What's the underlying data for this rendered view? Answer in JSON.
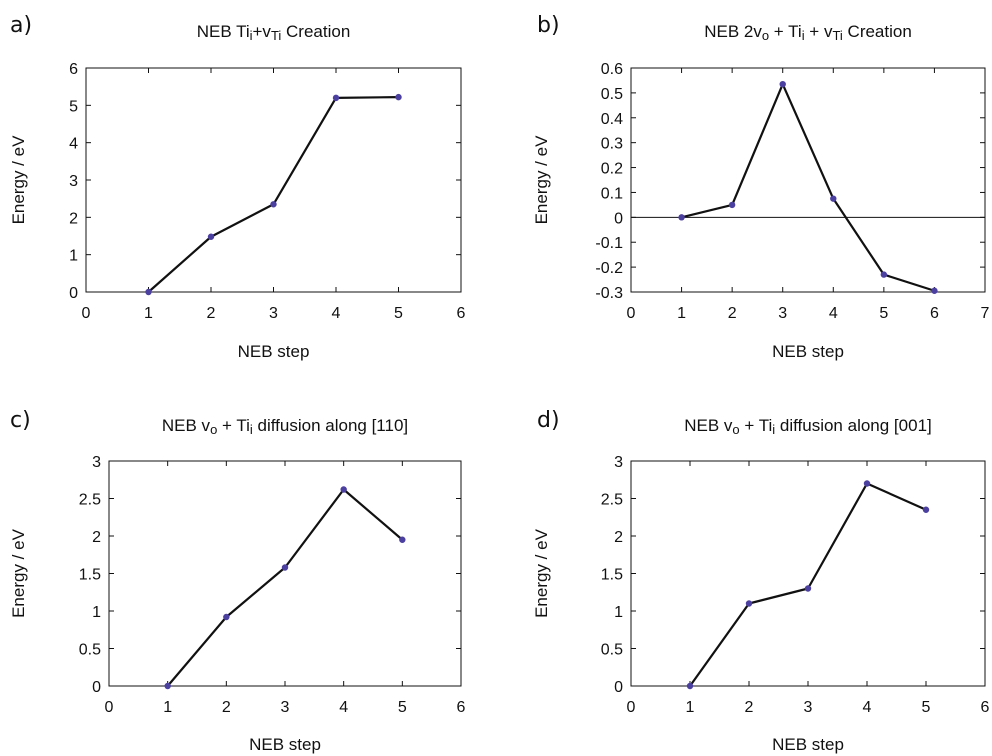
{
  "colors": {
    "line": "#111111",
    "marker": "#4b3fa0",
    "axis": "#111111"
  },
  "chart_data": [
    {
      "panel_label": "a)",
      "type": "line",
      "title_parts": [
        {
          "text": "NEB Ti"
        },
        {
          "text": "i",
          "sub": true
        },
        {
          "text": "+v"
        },
        {
          "text": "Ti",
          "sub": true
        },
        {
          "text": " Creation"
        }
      ],
      "xlabel": "NEB step",
      "ylabel": "Energy / eV",
      "xlim": [
        0,
        6
      ],
      "ylim": [
        0,
        6
      ],
      "xticks": [
        "0",
        "1",
        "2",
        "3",
        "4",
        "5",
        "6"
      ],
      "yticks": [
        "0",
        "1",
        "2",
        "3",
        "4",
        "5",
        "6"
      ],
      "zero_line": false,
      "x": [
        1,
        2,
        3,
        4,
        5
      ],
      "y": [
        0,
        1.48,
        2.35,
        5.2,
        5.22
      ]
    },
    {
      "panel_label": "b)",
      "type": "line",
      "title_parts": [
        {
          "text": "NEB 2v"
        },
        {
          "text": "o",
          "sub": true
        },
        {
          "text": " + Ti"
        },
        {
          "text": "i",
          "sub": true
        },
        {
          "text": " + v"
        },
        {
          "text": "Ti",
          "sub": true
        },
        {
          "text": " Creation"
        }
      ],
      "xlabel": "NEB step",
      "ylabel": "Energy / eV",
      "xlim": [
        0,
        7
      ],
      "ylim": [
        -0.3,
        0.6
      ],
      "xticks": [
        "0",
        "1",
        "2",
        "3",
        "4",
        "5",
        "6",
        "7"
      ],
      "yticks": [
        "-0.3",
        "-0.2",
        "-0.1",
        "0",
        "0.1",
        "0.2",
        "0.3",
        "0.4",
        "0.5",
        "0.6"
      ],
      "zero_line": true,
      "x": [
        1,
        2,
        3,
        4,
        5,
        6
      ],
      "y": [
        0,
        0.05,
        0.535,
        0.075,
        -0.23,
        -0.295
      ]
    },
    {
      "panel_label": "c)",
      "type": "line",
      "title_parts": [
        {
          "text": "NEB v"
        },
        {
          "text": "o",
          "sub": true
        },
        {
          "text": " + Ti"
        },
        {
          "text": "i",
          "sub": true
        },
        {
          "text": " diffusion along [110]"
        }
      ],
      "xlabel": "NEB step",
      "ylabel": "Energy / eV",
      "xlim": [
        0,
        6
      ],
      "ylim": [
        0,
        3
      ],
      "xticks": [
        "0",
        "1",
        "2",
        "3",
        "4",
        "5",
        "6"
      ],
      "yticks": [
        "0",
        "0.5",
        "1",
        "1.5",
        "2",
        "2.5",
        "3"
      ],
      "zero_line": false,
      "x": [
        1,
        2,
        3,
        4,
        5
      ],
      "y": [
        0,
        0.92,
        1.58,
        2.62,
        1.95
      ]
    },
    {
      "panel_label": "d)",
      "type": "line",
      "title_parts": [
        {
          "text": "NEB v"
        },
        {
          "text": "o",
          "sub": true
        },
        {
          "text": " + Ti"
        },
        {
          "text": "i",
          "sub": true
        },
        {
          "text": " diffusion along [001]"
        }
      ],
      "xlabel": "NEB step",
      "ylabel": "Energy / eV",
      "xlim": [
        0,
        6
      ],
      "ylim": [
        0,
        3
      ],
      "xticks": [
        "0",
        "1",
        "2",
        "3",
        "4",
        "5",
        "6"
      ],
      "yticks": [
        "0",
        "0.5",
        "1",
        "1.5",
        "2",
        "2.5",
        "3"
      ],
      "zero_line": false,
      "x": [
        1,
        2,
        3,
        4,
        5
      ],
      "y": [
        0,
        1.1,
        1.3,
        2.7,
        2.35
      ]
    }
  ]
}
